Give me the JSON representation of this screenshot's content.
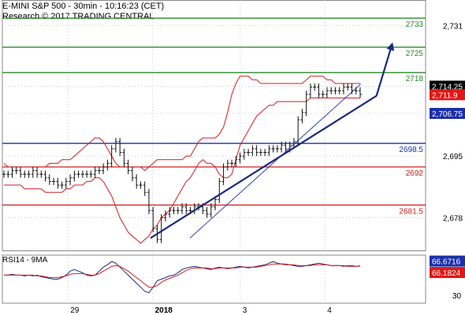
{
  "header": {
    "line1": "E-MINI S&P 500 - 30min - 10:16:23 (CET)",
    "line2": "Research © 2017 TRADING CENTRAL"
  },
  "chart_data": {
    "type": "candlestick",
    "main": {
      "ylim": [
        2669,
        2738
      ],
      "y_ticks": [
        2731,
        2714.25,
        2706.75,
        2695,
        2678
      ],
      "price_tick_labels": [
        "2,731",
        "2,695",
        "2,678"
      ],
      "levels": [
        {
          "label": "2733",
          "value": 2733,
          "color": "#2a8a2a"
        },
        {
          "label": "2725",
          "value": 2725,
          "color": "#2a8a2a"
        },
        {
          "label": "2718",
          "value": 2718,
          "color": "#2a8a2a"
        },
        {
          "label": "2698.5",
          "value": 2698.5,
          "color": "#1c2fa8"
        },
        {
          "label": "2692",
          "value": 2692,
          "color": "#d11c1c"
        },
        {
          "label": "2681.5",
          "value": 2681.5,
          "color": "#d11c1c"
        }
      ],
      "price_boxes": [
        {
          "label": "2,714.25",
          "value": 2714.25,
          "bg": "#000000",
          "fg": "#ffffff"
        },
        {
          "label": "2,711.9",
          "value": 2711.9,
          "bg": "#e01818",
          "fg": "#ffffff"
        },
        {
          "label": "2,706.75",
          "value": 2706.75,
          "bg": "#1c2fa8",
          "fg": "#ffffff"
        }
      ],
      "trendline": {
        "start": [
          0.35,
          2672.4
        ],
        "end": [
          0.884,
          2711.6
        ]
      },
      "arrow": {
        "start": [
          0.884,
          2711.6
        ],
        "end": [
          0.92,
          2725.5
        ]
      },
      "close_series": [
        2690,
        2690,
        2691,
        2691,
        2690,
        2690,
        2690,
        2691,
        2690,
        2690,
        2689,
        2688,
        2688,
        2687,
        2687,
        2688,
        2689,
        2690,
        2690,
        2690,
        2690,
        2690,
        2691,
        2691,
        2692,
        2693,
        2697,
        2699,
        2696,
        2693,
        2691,
        2689,
        2687,
        2687,
        2685,
        2680,
        2675,
        2672,
        2678,
        2679,
        2680,
        2680,
        2680,
        2681,
        2680,
        2680,
        2681,
        2681,
        2680,
        2679,
        2681,
        2683,
        2688,
        2692,
        2693,
        2693,
        2694,
        2695,
        2696,
        2696,
        2697,
        2696,
        2696,
        2696,
        2697,
        2697,
        2697,
        2698,
        2697,
        2698,
        2699,
        2705,
        2707,
        2712,
        2714,
        2714,
        2712,
        2712,
        2713,
        2713,
        2713,
        2713,
        2714,
        2714,
        2713,
        2713,
        2712
      ],
      "bb_upper": [
        2693,
        2692,
        2692,
        2692,
        2692,
        2692,
        2692,
        2692,
        2692,
        2692,
        2692,
        2693,
        2693,
        2693,
        2694,
        2694,
        2694,
        2695,
        2696,
        2697,
        2698,
        2699,
        2700,
        2700,
        2699,
        2697,
        2695,
        2693,
        2692,
        2692,
        2692,
        2692,
        2692,
        2692,
        2691,
        2692,
        2693,
        2694,
        2694,
        2694,
        2694,
        2694,
        2694,
        2694,
        2695,
        2695,
        2697,
        2699,
        2700,
        2700,
        2700,
        2700,
        2701,
        2703,
        2707,
        2712,
        2715,
        2717,
        2717,
        2717,
        2716,
        2716,
        2715,
        2715,
        2715,
        2715,
        2715,
        2715,
        2715,
        2715,
        2715,
        2715,
        2715,
        2716,
        2717,
        2717,
        2717,
        2717,
        2716,
        2716,
        2715,
        2715,
        2715,
        2715,
        2715,
        2715,
        2715
      ],
      "bb_lower": [
        2687,
        2687,
        2687,
        2687,
        2687,
        2686,
        2686,
        2686,
        2686,
        2686,
        2685,
        2685,
        2685,
        2685,
        2685,
        2686,
        2686,
        2687,
        2687,
        2687,
        2688,
        2688,
        2689,
        2689,
        2688,
        2686,
        2684,
        2681,
        2678,
        2676,
        2674,
        2673,
        2672,
        2671,
        2672,
        2673,
        2675,
        2676,
        2678,
        2679,
        2680,
        2682,
        2684,
        2686,
        2688,
        2689,
        2691,
        2693,
        2694,
        2693,
        2693,
        2692,
        2690,
        2689,
        2689,
        2690,
        2694,
        2698,
        2700,
        2702,
        2704,
        2706,
        2707,
        2708,
        2709,
        2709,
        2710,
        2710,
        2710,
        2710,
        2710,
        2710,
        2710,
        2710,
        2711,
        2711,
        2711,
        2711,
        2711,
        2711,
        2711,
        2711,
        2711,
        2711,
        2711,
        2711,
        2711
      ],
      "x_labels": [
        {
          "label": "29",
          "pos": 0.155
        },
        {
          "label": "2018",
          "pos": 0.355
        },
        {
          "label": "3",
          "pos": 0.562
        },
        {
          "label": "4",
          "pos": 0.762
        }
      ]
    },
    "rsi": {
      "title": "RSI14 - 9MA",
      "y_ticks": [
        30
      ],
      "ylim": [
        20,
        80
      ],
      "tick_labels": [
        "30"
      ],
      "last_values": [
        {
          "label": "66.6716",
          "value": 66.6716,
          "bg": "#1c2fa8",
          "fg": "#ffffff"
        },
        {
          "label": "66.1824",
          "value": 66.1824,
          "bg": "#e01818",
          "fg": "#ffffff"
        }
      ],
      "rsi_series": [
        55,
        55,
        56,
        55,
        55,
        54,
        55,
        54,
        55,
        53,
        52,
        51,
        50,
        50,
        52,
        55,
        60,
        62,
        60,
        58,
        55,
        54,
        55,
        60,
        65,
        68,
        72,
        70,
        65,
        60,
        55,
        50,
        45,
        40,
        35,
        33,
        40,
        48,
        50,
        52,
        54,
        55,
        58,
        62,
        64,
        65,
        66,
        65,
        64,
        63,
        62,
        64,
        65,
        64,
        63,
        64,
        65,
        66,
        65,
        64,
        65,
        66,
        67,
        68,
        70,
        72,
        70,
        69,
        68,
        68,
        67,
        66,
        66,
        67,
        68,
        69,
        70,
        69,
        68,
        67,
        67,
        67,
        66,
        67,
        67,
        66,
        66.7
      ],
      "ma_series": [
        55,
        55,
        55,
        55,
        55,
        55,
        55,
        55,
        54,
        54,
        53,
        52,
        52,
        52,
        53,
        54,
        56,
        57,
        57,
        57,
        56,
        55,
        55,
        57,
        60,
        63,
        66,
        67,
        66,
        63,
        60,
        56,
        52,
        48,
        44,
        40,
        40,
        42,
        46,
        49,
        51,
        53,
        55,
        58,
        61,
        63,
        64,
        64,
        64,
        64,
        63,
        63,
        64,
        64,
        64,
        64,
        64,
        65,
        65,
        65,
        65,
        65,
        66,
        67,
        68,
        69,
        69,
        69,
        69,
        68,
        68,
        67,
        67,
        67,
        67,
        68,
        68,
        68,
        68,
        67,
        67,
        67,
        67,
        66,
        66,
        66,
        66.2
      ]
    }
  }
}
